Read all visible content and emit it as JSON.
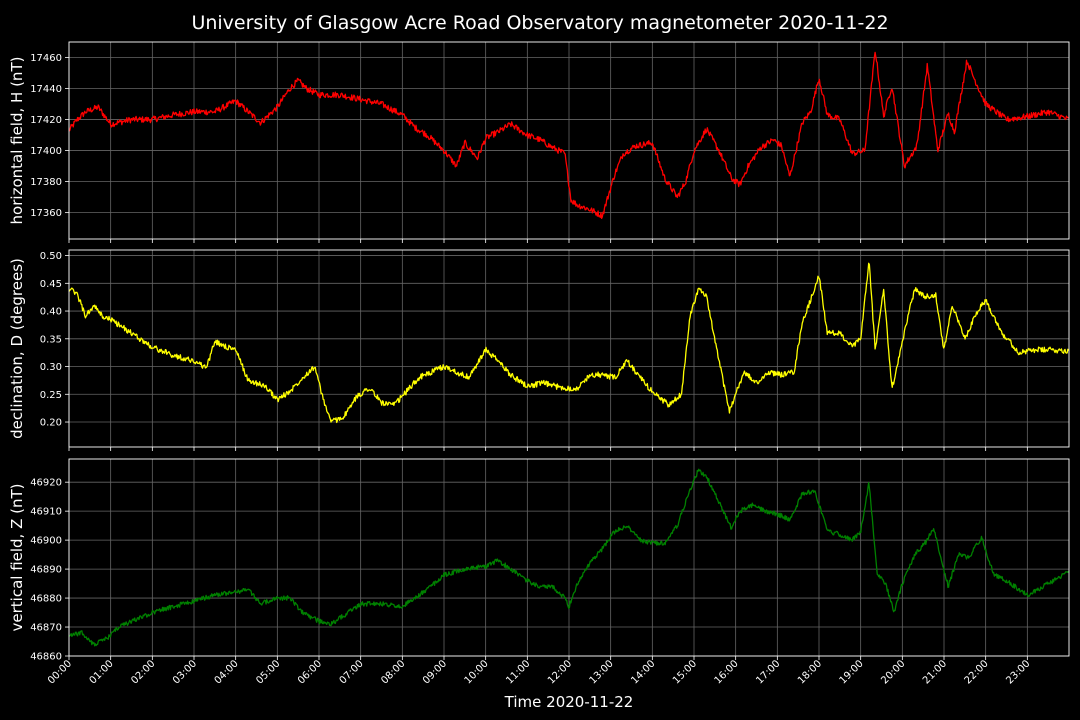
{
  "chart_data": {
    "type": "line",
    "title": "University of Glasgow Acre Road Observatory magnetometer 2020-11-22",
    "xlabel": "Time 2020-11-22",
    "x_ticks": [
      "00:00",
      "01:00",
      "02:00",
      "03:00",
      "04:00",
      "05:00",
      "06:00",
      "07:00",
      "08:00",
      "09:00",
      "10:00",
      "11:00",
      "12:00",
      "13:00",
      "14:00",
      "15:00",
      "16:00",
      "17:00",
      "18:00",
      "19:00",
      "20:00",
      "21:00",
      "22:00",
      "23:00"
    ],
    "x_unit": "hour of day",
    "xlim": [
      0,
      24
    ],
    "grid": true,
    "panels": [
      {
        "ylabel": "horizontal field, H (nT)",
        "color": "#ff0000",
        "ylim": [
          17343,
          17470
        ],
        "y_ticks": [
          17360,
          17380,
          17400,
          17420,
          17440,
          17460
        ],
        "noise": 2.0,
        "x": [
          0,
          0.2,
          0.4,
          0.7,
          1,
          1.5,
          2,
          2.5,
          3,
          3.5,
          4,
          4.3,
          4.6,
          5,
          5.3,
          5.5,
          5.7,
          6,
          6.5,
          7,
          7.5,
          8,
          8.3,
          8.6,
          9,
          9.3,
          9.5,
          9.8,
          10,
          10.3,
          10.6,
          11,
          11.3,
          11.6,
          11.9,
          12.05,
          12.2,
          12.5,
          12.8,
          13.1,
          13.3,
          13.6,
          14,
          14.3,
          14.6,
          14.8,
          15,
          15.3,
          15.6,
          15.9,
          16.1,
          16.3,
          16.6,
          16.9,
          17.1,
          17.3,
          17.6,
          17.8,
          18,
          18.2,
          18.5,
          18.8,
          19.1,
          19.35,
          19.55,
          19.75,
          20.05,
          20.35,
          20.6,
          20.85,
          21.1,
          21.25,
          21.55,
          21.7,
          22,
          22.5,
          23,
          23.5,
          23.99
        ],
        "y": [
          17413,
          17420,
          17425,
          17428,
          17417,
          17420,
          17420,
          17423,
          17425,
          17425,
          17432,
          17425,
          17418,
          17428,
          17440,
          17445,
          17440,
          17436,
          17436,
          17433,
          17430,
          17423,
          17415,
          17410,
          17400,
          17390,
          17405,
          17395,
          17408,
          17412,
          17417,
          17410,
          17407,
          17402,
          17398,
          17368,
          17365,
          17362,
          17358,
          17385,
          17398,
          17403,
          17405,
          17382,
          17370,
          17380,
          17400,
          17414,
          17400,
          17382,
          17378,
          17390,
          17402,
          17407,
          17403,
          17383,
          17418,
          17425,
          17447,
          17423,
          17420,
          17398,
          17400,
          17465,
          17422,
          17442,
          17390,
          17403,
          17455,
          17400,
          17424,
          17412,
          17458,
          17448,
          17430,
          17420,
          17422,
          17425,
          17420
        ]
      },
      {
        "ylabel": "declination, D (degrees)",
        "color": "#ffff00",
        "ylim": [
          0.155,
          0.51
        ],
        "y_ticks": [
          0.2,
          0.25,
          0.3,
          0.35,
          0.4,
          0.45,
          0.5
        ],
        "noise": 0.005,
        "x": [
          0,
          0.2,
          0.4,
          0.6,
          0.8,
          1,
          1.5,
          2,
          2.5,
          3,
          3.3,
          3.5,
          3.8,
          4,
          4.3,
          4.7,
          5,
          5.3,
          5.6,
          5.9,
          6.1,
          6.3,
          6.6,
          6.9,
          7.2,
          7.5,
          7.8,
          8.1,
          8.4,
          8.7,
          9,
          9.3,
          9.6,
          10,
          10.3,
          10.6,
          11,
          11.4,
          11.8,
          12.2,
          12.5,
          12.8,
          13.1,
          13.4,
          13.7,
          14,
          14.4,
          14.7,
          14.9,
          15.1,
          15.3,
          15.6,
          15.85,
          16.2,
          16.5,
          16.8,
          17.1,
          17.4,
          17.6,
          17.8,
          18,
          18.2,
          18.5,
          18.8,
          19,
          19.2,
          19.35,
          19.55,
          19.75,
          19.85,
          20.1,
          20.3,
          20.55,
          20.8,
          21,
          21.2,
          21.5,
          21.8,
          22,
          22.4,
          22.8,
          23.2,
          23.6,
          23.99
        ],
        "y": [
          0.44,
          0.43,
          0.39,
          0.41,
          0.39,
          0.385,
          0.36,
          0.335,
          0.32,
          0.31,
          0.298,
          0.345,
          0.335,
          0.33,
          0.275,
          0.265,
          0.24,
          0.255,
          0.28,
          0.3,
          0.24,
          0.2,
          0.21,
          0.245,
          0.262,
          0.235,
          0.23,
          0.255,
          0.28,
          0.29,
          0.3,
          0.29,
          0.28,
          0.33,
          0.31,
          0.285,
          0.265,
          0.27,
          0.262,
          0.26,
          0.285,
          0.285,
          0.28,
          0.31,
          0.28,
          0.255,
          0.23,
          0.25,
          0.39,
          0.44,
          0.425,
          0.31,
          0.22,
          0.29,
          0.27,
          0.29,
          0.285,
          0.29,
          0.38,
          0.42,
          0.465,
          0.36,
          0.36,
          0.335,
          0.35,
          0.49,
          0.33,
          0.44,
          0.26,
          0.29,
          0.38,
          0.44,
          0.425,
          0.43,
          0.33,
          0.41,
          0.35,
          0.4,
          0.42,
          0.36,
          0.325,
          0.33,
          0.33,
          0.328
        ]
      },
      {
        "ylabel": "vertical field, Z (nT)",
        "color": "#008000",
        "ylim": [
          46860,
          46928
        ],
        "y_ticks": [
          46860,
          46870,
          46880,
          46890,
          46900,
          46910,
          46920
        ],
        "noise": 0.8,
        "x": [
          0,
          0.3,
          0.6,
          0.9,
          1.2,
          1.5,
          2,
          2.5,
          3,
          3.5,
          4,
          4.3,
          4.6,
          5,
          5.3,
          5.6,
          6,
          6.3,
          6.6,
          7,
          7.5,
          8,
          8.3,
          8.6,
          9,
          9.5,
          10,
          10.3,
          10.6,
          11,
          11.3,
          11.6,
          11.9,
          12,
          12.2,
          12.5,
          12.8,
          13.1,
          13.4,
          13.7,
          14,
          14.3,
          14.6,
          14.9,
          15.1,
          15.3,
          15.6,
          15.9,
          16.1,
          16.4,
          16.7,
          17,
          17.3,
          17.6,
          17.9,
          18.2,
          18.5,
          18.8,
          19,
          19.2,
          19.4,
          19.6,
          19.8,
          20,
          20.3,
          20.55,
          20.75,
          21.1,
          21.35,
          21.6,
          21.9,
          22.2,
          22.5,
          23,
          23.5,
          23.99
        ],
        "y": [
          46867,
          46868,
          46864,
          46866,
          46870,
          46872,
          46875,
          46877,
          46879,
          46881,
          46882,
          46883,
          46878,
          46880,
          46880,
          46875,
          46872,
          46871,
          46874,
          46878,
          46878,
          46877,
          46880,
          46883,
          46888,
          46890,
          46891,
          46893,
          46890,
          46886,
          46884,
          46884,
          46880,
          46877,
          46885,
          46892,
          46897,
          46903,
          46905,
          46900,
          46899,
          46899,
          46905,
          46917,
          46924,
          46922,
          46913,
          46904,
          46910,
          46912,
          46910,
          46909,
          46907,
          46916,
          46917,
          46903,
          46902,
          46900,
          46903,
          46920,
          46888,
          46885,
          46875,
          46885,
          46895,
          46899,
          46904,
          46884,
          46895,
          46894,
          46901,
          46888,
          46886,
          46881,
          46885,
          46889
        ]
      }
    ]
  }
}
